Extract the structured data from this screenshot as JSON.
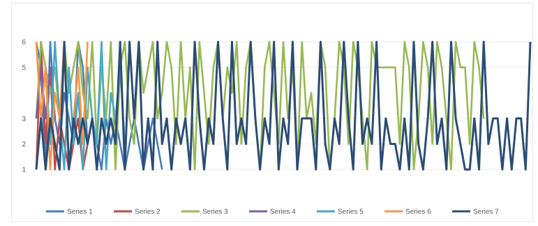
{
  "chart_data": {
    "type": "line",
    "title": "",
    "xlabel": "",
    "ylabel": "",
    "ylim": [
      1,
      6
    ],
    "yticks": [
      "1",
      "2",
      "3",
      "5",
      "6"
    ],
    "ytick_values": [
      1,
      2,
      3,
      5,
      6
    ],
    "grid": true,
    "legend_position": "bottom",
    "series": [
      {
        "name": "Series 1",
        "color": "#4a7ebb",
        "values": [
          6,
          5,
          1,
          6,
          3,
          2,
          4,
          3,
          2,
          6,
          5,
          2,
          3,
          2,
          1,
          3,
          2,
          3,
          2,
          1,
          2,
          3,
          2,
          1,
          2,
          3,
          2,
          1
        ]
      },
      {
        "name": "Series 2",
        "color": "#be4b48",
        "values": [
          1,
          6,
          2,
          5,
          1,
          3,
          2,
          1,
          2,
          3,
          1,
          2
        ]
      },
      {
        "name": "Series 3",
        "color": "#98b954",
        "values": [
          3,
          6,
          5,
          4,
          5,
          3,
          6,
          4,
          5,
          6,
          4,
          3,
          6,
          2,
          5,
          3,
          6,
          1,
          5,
          6,
          3,
          2,
          6,
          4,
          5,
          6,
          3,
          4,
          6,
          5,
          2,
          6,
          3,
          5,
          1,
          6,
          4,
          2,
          5,
          6,
          3,
          5,
          4,
          6,
          2,
          5,
          6,
          3,
          1,
          5,
          6,
          4,
          2,
          6,
          3,
          5,
          1,
          6,
          3,
          4,
          2,
          6,
          5,
          1,
          3,
          6,
          5,
          2,
          6,
          5,
          3,
          1,
          6,
          5,
          5,
          5,
          5,
          5,
          2,
          6,
          5,
          1,
          3,
          6,
          5,
          2,
          6,
          5,
          3,
          1,
          6,
          5,
          5,
          2,
          6,
          5,
          3
        ]
      },
      {
        "name": "Series 4",
        "color": "#7d60a0",
        "values": [
          3,
          5,
          3,
          5,
          3
        ]
      },
      {
        "name": "Series 5",
        "color": "#46aac5",
        "values": [
          1,
          3,
          5,
          2,
          6,
          3,
          1,
          5,
          2,
          4,
          1,
          5,
          3,
          2,
          6,
          1,
          4,
          3,
          5,
          2
        ]
      },
      {
        "name": "Series 6",
        "color": "#f79646",
        "values": [
          6,
          3,
          5,
          1,
          4,
          3,
          6,
          1,
          3,
          5,
          2,
          6
        ]
      },
      {
        "name": "Series 7",
        "color": "#2c4d75",
        "values": [
          1,
          3,
          1,
          3,
          2,
          1,
          6,
          1,
          3,
          2,
          3,
          2,
          3,
          1,
          3,
          2,
          3,
          2,
          6,
          1,
          6,
          3,
          6,
          1,
          3,
          1,
          6,
          2,
          3,
          1,
          3,
          2,
          3,
          1,
          6,
          3,
          1,
          3,
          2,
          6,
          3,
          1,
          6,
          2,
          3,
          2,
          6,
          3,
          1,
          3,
          2,
          6,
          1,
          3,
          2,
          6,
          1,
          3,
          3,
          3,
          1,
          6,
          2,
          1,
          3,
          2,
          6,
          3,
          1,
          6,
          2,
          3,
          2,
          6,
          1,
          3,
          2,
          2,
          1,
          3,
          1,
          6,
          2,
          1,
          3,
          6,
          2,
          3,
          1,
          6,
          3,
          2,
          1,
          1,
          3,
          1,
          6,
          2,
          3,
          3,
          1,
          3,
          1,
          3,
          3,
          1,
          6
        ]
      }
    ]
  }
}
